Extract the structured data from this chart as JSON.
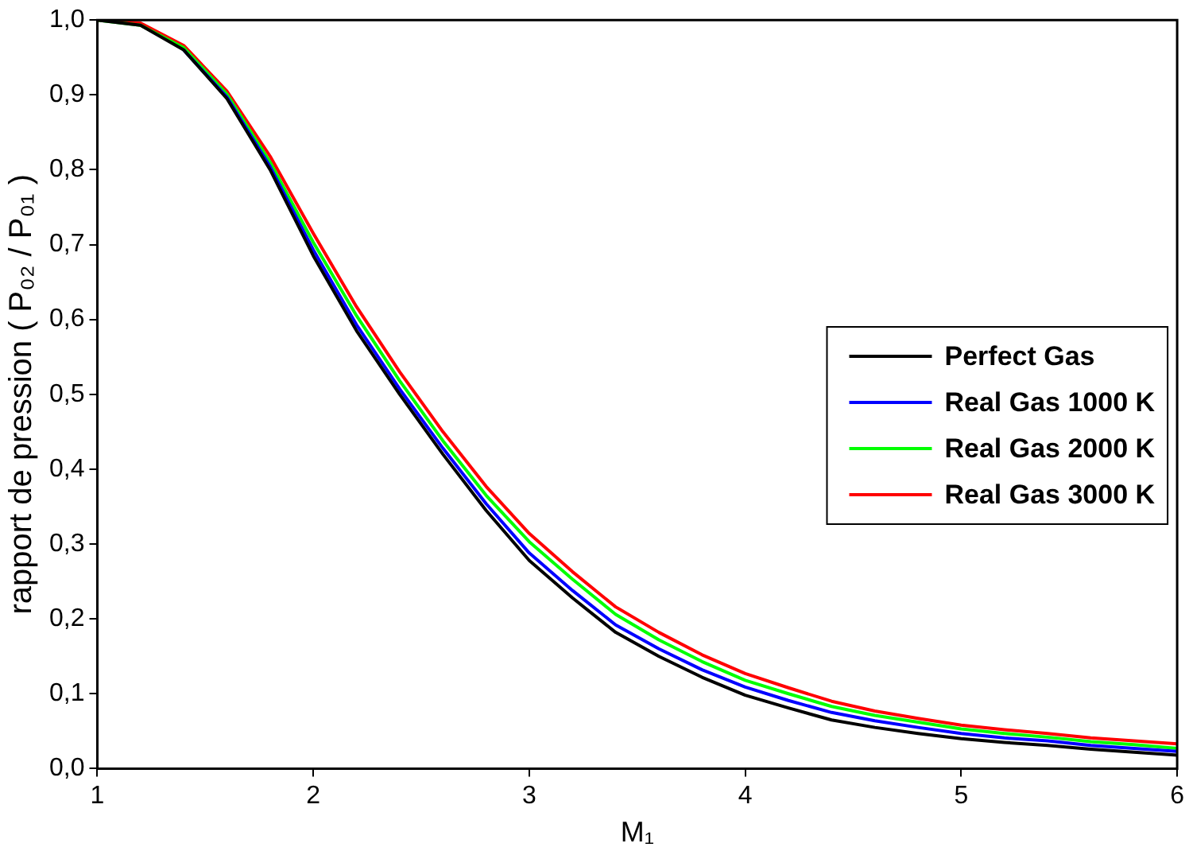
{
  "chart_data": {
    "type": "line",
    "xlabel": "M₁",
    "ylabel": "rapport de pression ( P₀₂ / P₀₁ )",
    "x": [
      1,
      1.2,
      1.4,
      1.6,
      1.8,
      2,
      2.2,
      2.4,
      2.6,
      2.8,
      3,
      3.2,
      3.4,
      3.6,
      3.8,
      4,
      4.2,
      4.4,
      4.6,
      4.8,
      5,
      5.2,
      5.4,
      5.6,
      5.8,
      6
    ],
    "series": [
      {
        "name": "Perfect Gas",
        "color": "#000000",
        "values": [
          1,
          0.993,
          0.96,
          0.895,
          0.8,
          0.685,
          0.585,
          0.5,
          0.42,
          0.345,
          0.278,
          0.228,
          0.182,
          0.15,
          0.122,
          0.098,
          0.081,
          0.065,
          0.055,
          0.047,
          0.04,
          0.035,
          0.031,
          0.026,
          0.022,
          0.018
        ]
      },
      {
        "name": "Real Gas 1000 K",
        "color": "#0000ff",
        "values": [
          null,
          null,
          0.96,
          0.897,
          0.804,
          0.693,
          0.593,
          0.507,
          0.428,
          0.354,
          0.288,
          0.238,
          0.192,
          0.16,
          0.132,
          0.109,
          0.091,
          0.075,
          0.064,
          0.055,
          0.047,
          0.041,
          0.037,
          0.031,
          0.027,
          0.023
        ]
      },
      {
        "name": "Real Gas 2000 K",
        "color": "#00ff00",
        "values": [
          1,
          0.993,
          0.963,
          0.901,
          0.81,
          0.703,
          0.605,
          0.518,
          0.438,
          0.365,
          0.303,
          0.253,
          0.206,
          0.172,
          0.143,
          0.118,
          0.1,
          0.083,
          0.071,
          0.062,
          0.053,
          0.047,
          0.042,
          0.036,
          0.032,
          0.027
        ]
      },
      {
        "name": "Real Gas 3000 K",
        "color": "#ff0000",
        "values": [
          1,
          0.996,
          0.966,
          0.905,
          0.818,
          0.715,
          0.617,
          0.53,
          0.45,
          0.377,
          0.314,
          0.263,
          0.216,
          0.182,
          0.152,
          0.127,
          0.108,
          0.09,
          0.077,
          0.067,
          0.058,
          0.052,
          0.047,
          0.041,
          0.037,
          0.033
        ]
      }
    ],
    "xlim": [
      1,
      6
    ],
    "xticks": [
      1,
      2,
      3,
      4,
      5,
      6
    ],
    "ylim": [
      0,
      1
    ],
    "yticks": [
      {
        "value": 0,
        "label": "0,0"
      },
      {
        "value": 0.1,
        "label": "0,1"
      },
      {
        "value": 0.2,
        "label": "0,2"
      },
      {
        "value": 0.3,
        "label": "0,3"
      },
      {
        "value": 0.4,
        "label": "0,4"
      },
      {
        "value": 0.5,
        "label": "0,5"
      },
      {
        "value": 0.6,
        "label": "0,6"
      },
      {
        "value": 0.7,
        "label": "0,7"
      },
      {
        "value": 0.8,
        "label": "0,8"
      },
      {
        "value": 0.9,
        "label": "0,9"
      },
      {
        "value": 1,
        "label": "1,0"
      }
    ],
    "grid": false,
    "legend": "right",
    "marker": "none",
    "line_style": "solid"
  }
}
